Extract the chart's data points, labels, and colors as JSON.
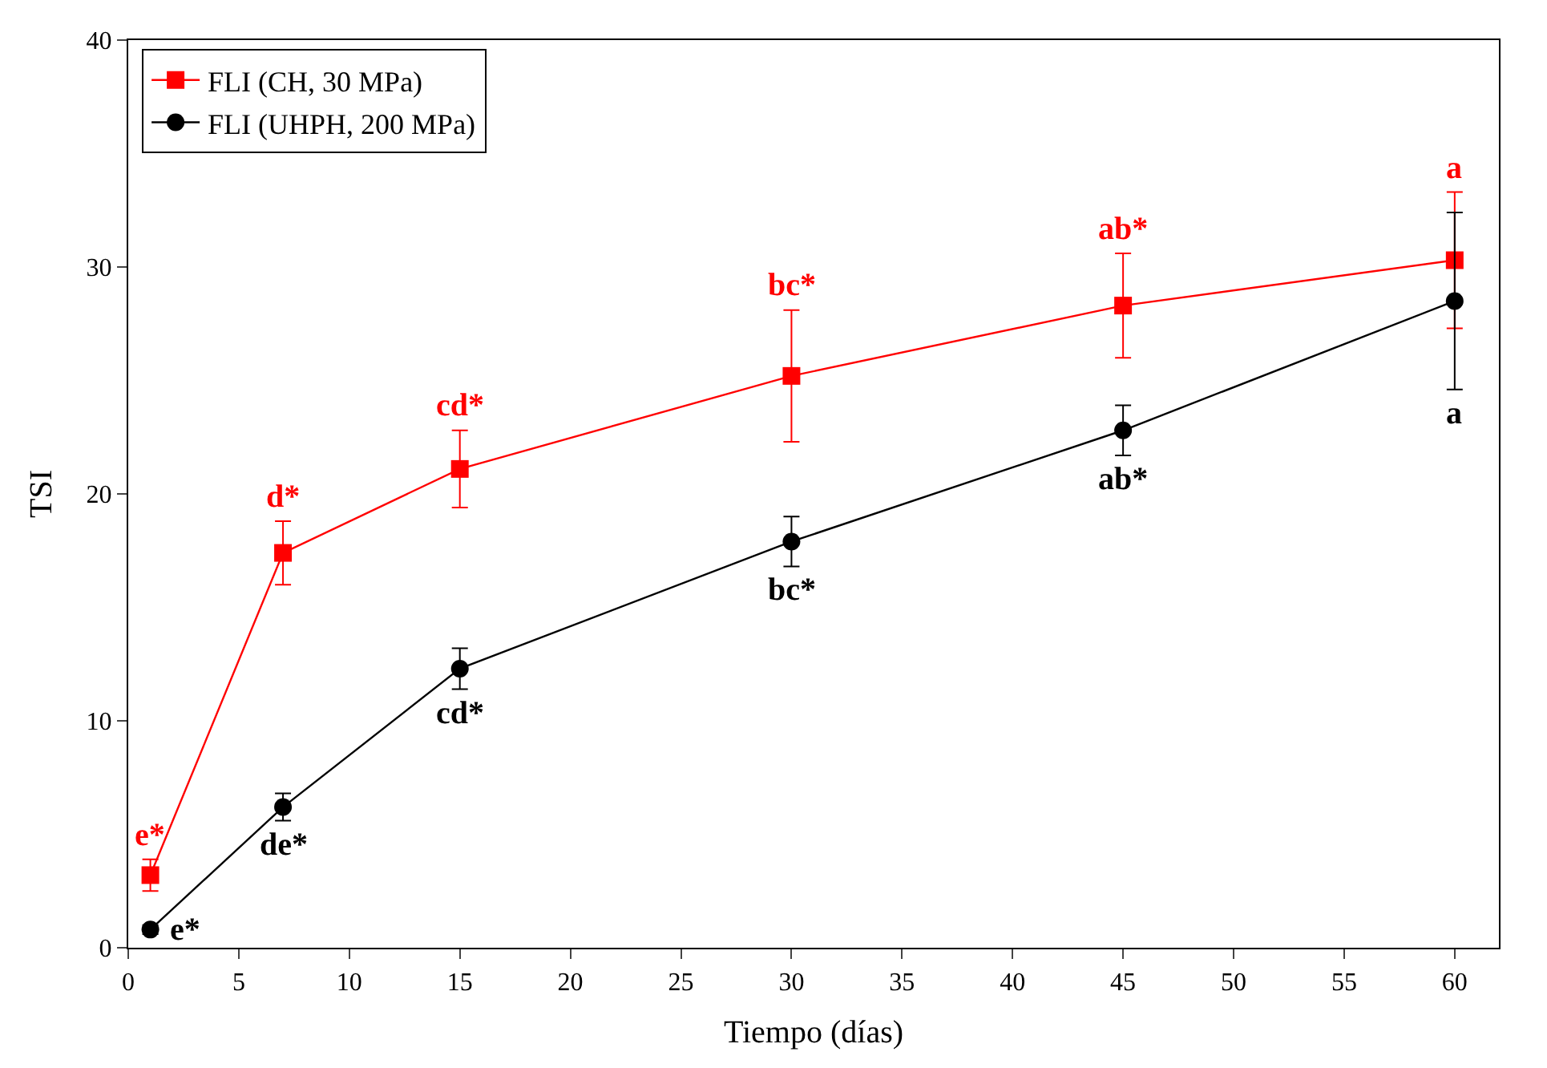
{
  "chart_data": {
    "type": "line",
    "xlabel": "Tiempo (días)",
    "ylabel": "TSI",
    "xlim": [
      0,
      62
    ],
    "ylim": [
      0,
      40
    ],
    "xticks": [
      0,
      5,
      10,
      15,
      20,
      25,
      30,
      35,
      40,
      45,
      50,
      55,
      60
    ],
    "yticks": [
      0,
      10,
      20,
      30,
      40
    ],
    "legend": "top left",
    "line_style": "solid",
    "series": [
      {
        "name": "FLI (CH, 30 MPa)",
        "color": "#ff0000",
        "marker": "square",
        "x": [
          1,
          7,
          15,
          30,
          45,
          60
        ],
        "values": [
          3.2,
          17.4,
          21.1,
          25.2,
          28.3,
          30.3
        ],
        "errors": [
          0.7,
          1.4,
          1.7,
          2.9,
          2.3,
          3.0
        ]
      },
      {
        "name": "FLI (UHPH, 200 MPa)",
        "color": "#000000",
        "marker": "circle",
        "x": [
          1,
          7,
          15,
          30,
          45,
          60
        ],
        "values": [
          0.8,
          6.2,
          12.3,
          17.9,
          22.8,
          28.5
        ],
        "errors": [
          0.2,
          0.6,
          0.9,
          1.1,
          1.1,
          3.9
        ]
      }
    ],
    "annotations": [
      {
        "text": "e*",
        "x": 1,
        "y": 3.2
      },
      {
        "text": "d*",
        "x": 7,
        "y": 17.4
      },
      {
        "text": "cd*",
        "x": 15,
        "y": 21.1
      },
      {
        "text": "bc*",
        "x": 30,
        "y": 25.2
      },
      {
        "text": "ab*",
        "x": 45,
        "y": 28.3
      },
      {
        "text": "a",
        "x": 60,
        "y": 30.3
      },
      {
        "text": "e*",
        "x": 1,
        "y": 0.8
      },
      {
        "text": "de*",
        "x": 7,
        "y": 6.2
      },
      {
        "text": "cd*",
        "x": 15,
        "y": 12.3
      },
      {
        "text": "bc*",
        "x": 30,
        "y": 17.9
      },
      {
        "text": "ab*",
        "x": 45,
        "y": 22.8
      },
      {
        "text": "a",
        "x": 60,
        "y": 28.5
      }
    ]
  }
}
